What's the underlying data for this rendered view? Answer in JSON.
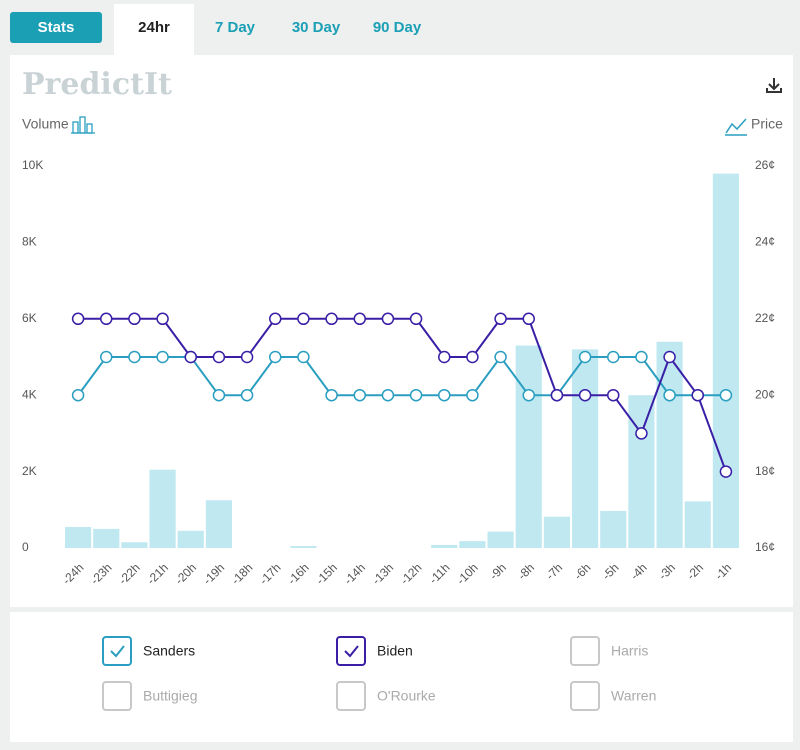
{
  "tabs": {
    "stats": "Stats",
    "periods": [
      "24hr",
      "7 Day",
      "30 Day",
      "90 Day"
    ],
    "active": 0
  },
  "logo": "PredictIt",
  "chart_data": {
    "type": "combo",
    "y_label": "Volume",
    "y2_label": "Price",
    "categories": [
      "-24h",
      "-23h",
      "-22h",
      "-21h",
      "-20h",
      "-19h",
      "-18h",
      "-17h",
      "-16h",
      "-15h",
      "-14h",
      "-13h",
      "-12h",
      "-11h",
      "-10h",
      "-9h",
      "-8h",
      "-7h",
      "-6h",
      "-5h",
      "-4h",
      "-3h",
      "-2h",
      "-1h"
    ],
    "values": [
      550,
      500,
      150,
      2050,
      450,
      1250,
      0,
      0,
      50,
      0,
      0,
      0,
      0,
      80,
      180,
      430,
      5300,
      820,
      5200,
      970,
      4000,
      5400,
      1220,
      9800
    ],
    "color": "#bfe8f0",
    "ylim": [
      0,
      10000
    ],
    "yticks": [
      0,
      {
        "value": 2000,
        "label": "2K"
      },
      {
        "value": 4000,
        "label": "4K"
      },
      {
        "value": 6000,
        "label": "6K"
      },
      {
        "value": 8000,
        "label": "8K"
      },
      {
        "value": 10000,
        "label": "10K"
      }
    ],
    "y2lim": [
      16,
      26
    ],
    "y2ticks": [
      {
        "value": 16,
        "label": "16¢"
      },
      {
        "value": 18,
        "label": "18¢"
      },
      {
        "value": 20,
        "label": "20¢"
      },
      {
        "value": 22,
        "label": "22¢"
      },
      {
        "value": 24,
        "label": "24¢"
      },
      {
        "value": 26,
        "label": "26¢"
      }
    ],
    "series": [
      {
        "name": "Sanders",
        "color": "#2a9ec0",
        "axis": "y2",
        "checked": true,
        "values": [
          20,
          21,
          21,
          21,
          21,
          20,
          20,
          21,
          21,
          20,
          20,
          20,
          20,
          20,
          20,
          21,
          20,
          20,
          21,
          21,
          21,
          20,
          20,
          20
        ]
      },
      {
        "name": "Biden",
        "color": "#3a1fa6",
        "axis": "y2",
        "checked": true,
        "values": [
          22,
          22,
          22,
          22,
          21,
          21,
          21,
          22,
          22,
          22,
          22,
          22,
          22,
          21,
          21,
          22,
          22,
          20,
          20,
          20,
          19,
          21,
          20,
          18
        ]
      }
    ],
    "unselected": [
      "Harris",
      "Buttigieg",
      "O'Rourke",
      "Warren"
    ]
  }
}
